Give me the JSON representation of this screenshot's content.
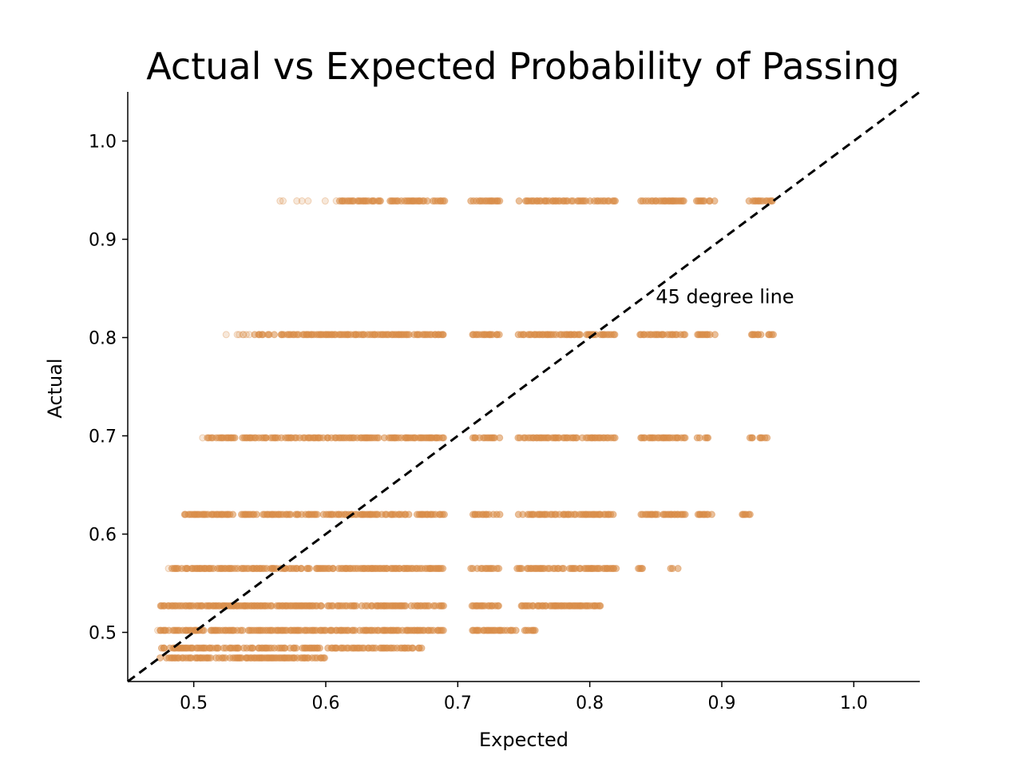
{
  "chart_data": {
    "type": "scatter",
    "title": "Actual vs Expected Probability of Passing",
    "xlabel": "Expected",
    "ylabel": "Actual",
    "xlim": [
      0.45,
      1.05
    ],
    "ylim": [
      0.45,
      1.05
    ],
    "xticks": [
      "0.5",
      "0.6",
      "0.7",
      "0.8",
      "0.9",
      "1.0"
    ],
    "yticks": [
      "0.5",
      "0.6",
      "0.7",
      "0.8",
      "0.9",
      "1.0"
    ],
    "grid": false,
    "point_color": "#d98c47",
    "reference_line": {
      "label": "45 degree line",
      "style": "dashed",
      "color": "#000000",
      "from": [
        0.45,
        0.45
      ],
      "to": [
        1.05,
        1.05
      ]
    },
    "annotation": {
      "text": "45 degree line",
      "x": 0.85,
      "y": 0.835
    },
    "rows": [
      {
        "y": 0.939,
        "x_min": 0.565,
        "x_max": 0.94,
        "dense_from": 0.61,
        "gaps": [
          [
            0.69,
            0.71
          ],
          [
            0.732,
            0.745
          ],
          [
            0.82,
            0.838
          ],
          [
            0.872,
            0.88
          ],
          [
            0.895,
            0.92
          ]
        ]
      },
      {
        "y": 0.803,
        "x_min": 0.525,
        "x_max": 0.94,
        "dense_from": 0.545,
        "gaps": [
          [
            0.69,
            0.71
          ],
          [
            0.732,
            0.745
          ],
          [
            0.82,
            0.838
          ],
          [
            0.872,
            0.88
          ],
          [
            0.895,
            0.92
          ]
        ]
      },
      {
        "y": 0.698,
        "x_min": 0.5,
        "x_max": 0.935,
        "dense_from": 0.51,
        "gaps": [
          [
            0.69,
            0.71
          ],
          [
            0.732,
            0.745
          ],
          [
            0.82,
            0.838
          ],
          [
            0.872,
            0.88
          ],
          [
            0.895,
            0.92
          ]
        ]
      },
      {
        "y": 0.62,
        "x_min": 0.488,
        "x_max": 0.922,
        "dense_from": 0.492,
        "gaps": [
          [
            0.69,
            0.71
          ],
          [
            0.732,
            0.745
          ],
          [
            0.82,
            0.838
          ],
          [
            0.872,
            0.88
          ],
          [
            0.895,
            0.915
          ]
        ]
      },
      {
        "y": 0.565,
        "x_min": 0.48,
        "x_max": 0.867,
        "dense_from": 0.483,
        "gaps": [
          [
            0.69,
            0.71
          ],
          [
            0.732,
            0.745
          ],
          [
            0.82,
            0.835
          ],
          [
            0.84,
            0.86
          ]
        ]
      },
      {
        "y": 0.527,
        "x_min": 0.472,
        "x_max": 0.808,
        "dense_from": 0.474,
        "gaps": [
          [
            0.69,
            0.71
          ],
          [
            0.732,
            0.745
          ]
        ]
      },
      {
        "y": 0.502,
        "x_min": 0.472,
        "x_max": 0.76,
        "dense_from": 0.474,
        "gaps": [
          [
            0.69,
            0.71
          ]
        ]
      },
      {
        "y": 0.484,
        "x_min": 0.472,
        "x_max": 0.673,
        "dense_from": 0.474,
        "gaps": []
      },
      {
        "y": 0.474,
        "x_min": 0.472,
        "x_max": 0.6,
        "dense_from": 0.474,
        "gaps": []
      }
    ]
  }
}
